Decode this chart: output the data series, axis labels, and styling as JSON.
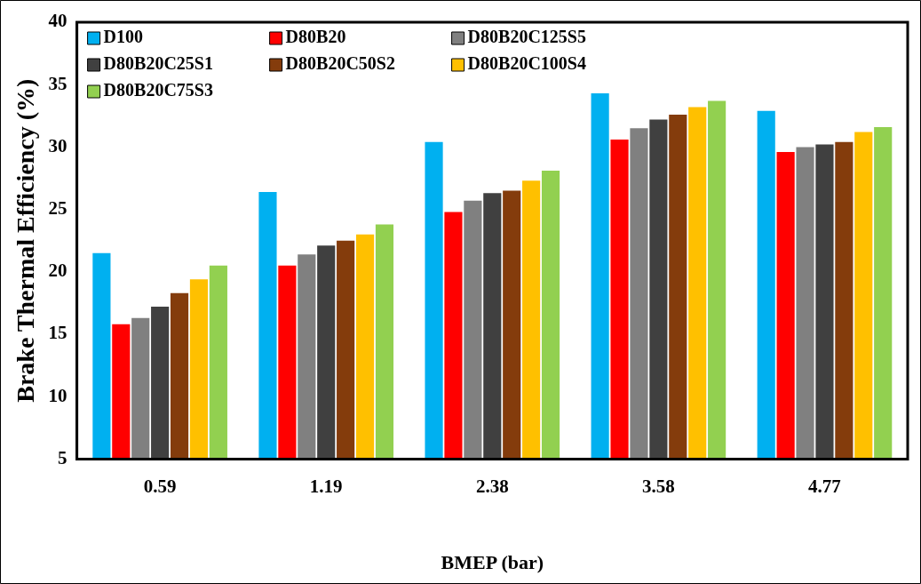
{
  "chart_data": {
    "type": "bar",
    "xlabel": "BMEP (bar)",
    "ylabel": "Brake Thermal Efficiency (%)",
    "categories": [
      "0.59",
      "1.19",
      "2.38",
      "3.58",
      "4.77"
    ],
    "series": [
      {
        "name": "D100",
        "color": "#00b0f0",
        "values": [
          21.5,
          26.4,
          30.4,
          34.3,
          32.9
        ]
      },
      {
        "name": "D80B20",
        "color": "#ff0000",
        "values": [
          15.8,
          20.5,
          24.8,
          30.6,
          29.6
        ]
      },
      {
        "name": "D80B20C125S5",
        "color": "#808080",
        "values": [
          16.3,
          21.4,
          25.7,
          31.5,
          30.0
        ]
      },
      {
        "name": "D80B20C25S1",
        "color": "#404040",
        "values": [
          17.2,
          22.1,
          26.3,
          32.2,
          30.2
        ]
      },
      {
        "name": "D80B20C50S2",
        "color": "#843c0c",
        "values": [
          18.3,
          22.5,
          26.5,
          32.6,
          30.4
        ]
      },
      {
        "name": "D80B20C100S4",
        "color": "#ffc000",
        "values": [
          19.4,
          23.0,
          27.3,
          33.2,
          31.2
        ]
      },
      {
        "name": "D80B20C75S3",
        "color": "#92d050",
        "values": [
          20.5,
          23.8,
          28.1,
          33.7,
          31.6
        ]
      }
    ],
    "ylim": [
      5,
      40
    ],
    "yticks": [
      5,
      10,
      15,
      20,
      25,
      30,
      35,
      40
    ],
    "grid": false,
    "legend": "top left"
  }
}
